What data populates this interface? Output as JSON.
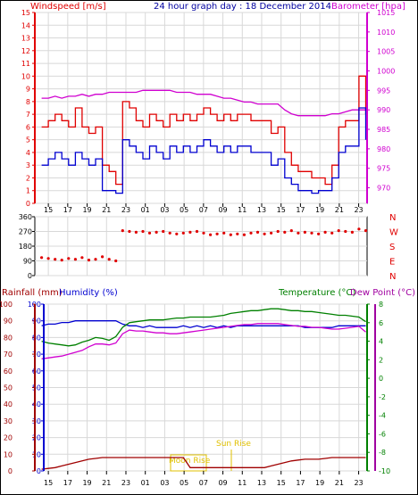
{
  "header": {
    "left_label": "Windspeed [m/s]",
    "title": "24 hour graph day : 18 December 2014",
    "right_label": "Barometer [hpa]"
  },
  "colors": {
    "wind_gust": "#e00000",
    "wind_avg": "#0000d0",
    "barometer": "#d000d0",
    "direction": "#e00000",
    "rain": "#a00000",
    "humidity": "#d000d0",
    "temperature": "#008000",
    "dewpoint": "#0000d0",
    "rain_axis": "#a00000",
    "humidity_axis": "#0000d0",
    "temp_axis": "#008000",
    "dew_axis": "#a000a0",
    "sun": "#e0c000",
    "grid": "#d8d8d8"
  },
  "hour_ticks": [
    "15",
    "17",
    "19",
    "21",
    "23",
    "01",
    "03",
    "05",
    "07",
    "09",
    "11",
    "13",
    "15",
    "17",
    "19",
    "21",
    "23"
  ],
  "chart_data": [
    {
      "type": "line",
      "title": "24 hour graph day : 18 December 2014",
      "ylabel": "Windspeed [m/s]",
      "ylim": [
        0,
        15
      ],
      "y_ticks": [
        0,
        1,
        2,
        3,
        4,
        5,
        6,
        7,
        8,
        9,
        10,
        11,
        12,
        13,
        14,
        15
      ],
      "y2label": "Barometer [hpa]",
      "y2lim": [
        966,
        1015
      ],
      "y2_ticks": [
        970,
        975,
        980,
        985,
        990,
        995,
        1000,
        1005,
        1010,
        1015
      ],
      "x_hours": [
        14.5,
        15,
        15.5,
        16,
        16.5,
        17,
        17.5,
        18,
        18.5,
        19,
        19.5,
        20,
        20.5,
        21,
        21.5,
        22,
        22.5,
        23,
        23.5,
        24,
        24.5,
        25,
        25.5,
        26,
        26.5,
        27,
        27.5,
        28,
        28.5,
        29,
        29.5,
        30,
        30.5,
        31,
        31.5,
        32,
        32.5,
        33,
        33.5,
        34,
        34.5,
        35,
        35.5,
        36,
        36.5,
        37,
        37.5,
        38,
        38.5
      ],
      "series": [
        {
          "name": "gust",
          "values": [
            6,
            6.5,
            7,
            6.5,
            6,
            7.5,
            6,
            5.5,
            6,
            3,
            2.5,
            1.5,
            8,
            7.5,
            6.5,
            6,
            7,
            6.5,
            6,
            7,
            6.5,
            7,
            6.5,
            7,
            7.5,
            7,
            6.5,
            7,
            6.5,
            7,
            7,
            6.5,
            6.5,
            6.5,
            5.5,
            6,
            4,
            3,
            2.5,
            2.5,
            2,
            2,
            1.5,
            3,
            6,
            6.5,
            6.5,
            10,
            7
          ]
        },
        {
          "name": "average",
          "values": [
            3,
            3.5,
            4,
            3.5,
            3,
            4,
            3.5,
            3,
            3.5,
            1,
            1,
            0.8,
            5,
            4.5,
            4,
            3.5,
            4.5,
            4,
            3.5,
            4.5,
            4,
            4.5,
            4,
            4.5,
            5,
            4.5,
            4,
            4.5,
            4,
            4.5,
            4.5,
            4,
            4,
            4,
            3,
            3.5,
            2,
            1.5,
            1,
            1,
            0.8,
            1,
            1,
            2,
            4,
            4.5,
            4.5,
            7.5,
            5
          ]
        },
        {
          "name": "barometer",
          "values": [
            993,
            993,
            993.5,
            993,
            993.5,
            993.5,
            994,
            993.5,
            994,
            994,
            994.5,
            994.5,
            994.5,
            994.5,
            994.5,
            995,
            995,
            995,
            995,
            995,
            994.5,
            994.5,
            994.5,
            994,
            994,
            994,
            993.5,
            993,
            993,
            992.5,
            992,
            992,
            991.5,
            991.5,
            991.5,
            991.5,
            990,
            989,
            988.5,
            988.5,
            988.5,
            988.5,
            988.5,
            989,
            989,
            989.5,
            990,
            990,
            990
          ]
        }
      ]
    },
    {
      "type": "scatter",
      "ylabel": "Wind direction",
      "ylim": [
        0,
        360
      ],
      "y_ticks": [
        0,
        90,
        180,
        270,
        360
      ],
      "compass": [
        "N",
        "W",
        "S",
        "E",
        "N"
      ],
      "x_hours": [
        14.5,
        15,
        15.5,
        16,
        16.5,
        17,
        17.5,
        18,
        18.5,
        19,
        19.5,
        20,
        20.5,
        21,
        21.5,
        22,
        22.5,
        23,
        23.5,
        24,
        24.5,
        25,
        25.5,
        26,
        26.5,
        27,
        27.5,
        28,
        28.5,
        29,
        29.5,
        30,
        30.5,
        31,
        31.5,
        32,
        32.5,
        33,
        33.5,
        34,
        34.5,
        35,
        35.5,
        36,
        36.5,
        37,
        37.5,
        38,
        38.5
      ],
      "values": [
        110,
        105,
        100,
        95,
        105,
        100,
        110,
        95,
        100,
        115,
        100,
        90,
        275,
        270,
        265,
        270,
        260,
        265,
        270,
        260,
        255,
        260,
        265,
        270,
        260,
        250,
        255,
        260,
        250,
        255,
        250,
        260,
        265,
        255,
        260,
        270,
        265,
        275,
        260,
        265,
        260,
        255,
        265,
        260,
        275,
        270,
        265,
        285,
        275
      ]
    },
    {
      "type": "line",
      "ylabel": "Rainfall (mm)",
      "ylim": [
        0,
        100
      ],
      "y_ticks": [
        0,
        10,
        20,
        30,
        40,
        50,
        60,
        70,
        80,
        90,
        100
      ],
      "y2label": "Temperature (°C)",
      "y2lim": [
        -10,
        8
      ],
      "y2_ticks": [
        -10,
        -8,
        -6,
        -4,
        -2,
        0,
        2,
        4,
        6,
        8
      ],
      "x_hours": [
        14.5,
        15,
        15.5,
        16,
        16.5,
        17,
        17.5,
        18,
        18.5,
        19,
        19.5,
        20,
        20.5,
        21,
        21.5,
        22,
        22.5,
        23,
        23.5,
        24,
        24.5,
        25,
        25.5,
        26,
        26.5,
        27,
        27.5,
        28,
        28.5,
        29,
        29.5,
        30,
        30.5,
        31,
        31.5,
        32,
        32.5,
        33,
        33.5,
        34,
        34.5,
        35,
        35.5,
        36,
        36.5,
        37,
        37.5,
        38,
        38.5
      ],
      "series": [
        {
          "name": "Humidity (%)",
          "values": [
            87,
            88,
            88,
            89,
            89,
            90,
            90,
            90,
            90,
            90,
            90,
            90,
            88,
            87,
            87,
            86,
            87,
            86,
            86,
            86,
            86,
            87,
            86,
            87,
            86,
            87,
            86,
            87,
            86,
            87,
            87,
            87,
            87,
            87,
            87,
            87,
            87,
            87,
            87,
            86,
            86,
            86,
            86,
            86,
            87,
            87,
            87,
            87,
            87
          ]
        },
        {
          "name": "Temperature (°C)",
          "values": [
            4,
            3.8,
            3.7,
            3.6,
            3.5,
            3.6,
            3.9,
            4.1,
            4.4,
            4.3,
            4.1,
            4.5,
            5.5,
            6,
            6.1,
            6.2,
            6.3,
            6.3,
            6.3,
            6.4,
            6.5,
            6.5,
            6.6,
            6.6,
            6.6,
            6.6,
            6.7,
            6.8,
            7,
            7.1,
            7.2,
            7.3,
            7.3,
            7.4,
            7.5,
            7.5,
            7.4,
            7.3,
            7.3,
            7.2,
            7.2,
            7.1,
            7,
            6.9,
            6.8,
            6.8,
            6.7,
            6.6,
            6.1
          ]
        },
        {
          "name": "Dew Point (°C)",
          "values": [
            2.1,
            2.2,
            2.3,
            2.4,
            2.6,
            2.8,
            3,
            3.4,
            3.7,
            3.7,
            3.6,
            3.8,
            4.8,
            5.2,
            5.1,
            5.1,
            5,
            4.9,
            4.9,
            4.8,
            4.8,
            4.9,
            5,
            5.1,
            5.2,
            5.3,
            5.4,
            5.5,
            5.6,
            5.7,
            5.8,
            5.8,
            5.9,
            5.9,
            5.9,
            5.9,
            5.8,
            5.7,
            5.6,
            5.6,
            5.5,
            5.5,
            5.4,
            5.3,
            5.3,
            5.4,
            5.5,
            5.6,
            5
          ]
        },
        {
          "name": "Rainfall (mm)",
          "values": [
            1,
            1.5,
            2,
            3,
            4,
            5,
            6,
            7,
            7.5,
            8,
            8,
            8,
            8,
            8,
            8,
            8,
            8,
            8,
            8,
            8,
            8,
            8,
            2,
            2,
            2,
            2,
            2,
            2,
            2,
            2,
            2,
            2,
            2,
            2,
            3,
            4,
            5,
            6,
            6.5,
            7,
            7,
            7,
            7.5,
            8,
            8,
            8,
            8,
            8,
            8
          ]
        }
      ],
      "annotations": [
        "Moon Rise",
        "Sun Rise"
      ]
    }
  ],
  "lower_labels": {
    "rainfall": "Rainfall (mm)",
    "humidity": "Humidity (%)",
    "temperature": "Temperature (°C)",
    "dewpoint": "Dew Point (°C)",
    "moon_rise": "Moon Rise",
    "sun_rise": "Sun Rise"
  }
}
